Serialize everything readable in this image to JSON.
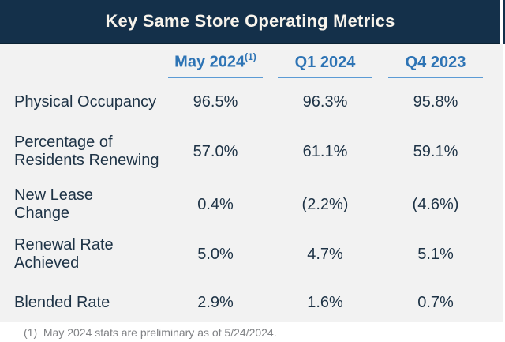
{
  "title": "Key Same Store Operating Metrics",
  "columns": [
    {
      "label": "May 2024",
      "superscript": "(1)"
    },
    {
      "label": "Q1 2024"
    },
    {
      "label": "Q4 2023"
    }
  ],
  "rows": [
    {
      "label": "Physical Occupancy",
      "values": [
        "96.5%",
        "96.3%",
        "95.8%"
      ]
    },
    {
      "label": "Percentage of\nResidents Renewing",
      "values": [
        "57.0%",
        "61.1%",
        "59.1%"
      ]
    },
    {
      "label": "New Lease\nChange",
      "values": [
        "0.4%",
        "(2.2%)",
        "(4.6%)"
      ]
    },
    {
      "label": "Renewal Rate\nAchieved",
      "values": [
        "5.0%",
        "4.7%",
        "5.1%"
      ]
    },
    {
      "label": "Blended Rate",
      "values": [
        "2.9%",
        "1.6%",
        "0.7%"
      ]
    }
  ],
  "footnote": "(1)  May 2024 stats are preliminary as of 5/24/2024.",
  "colors": {
    "title_bar_bg": "#14304a",
    "title_text": "#f8f4ec",
    "column_header_blue": "#2e74b5",
    "underline_blue": "#5b9bd5",
    "panel_bg": "#f2f2f2",
    "body_text": "#1e3346",
    "footnote_gray": "#808285"
  },
  "chart_data": {
    "type": "table",
    "title": "Key Same Store Operating Metrics",
    "columns": [
      "May 2024 (1)",
      "Q1 2024",
      "Q4 2023"
    ],
    "series": [
      {
        "name": "Physical Occupancy",
        "values": [
          "96.5%",
          "96.3%",
          "95.8%"
        ]
      },
      {
        "name": "Percentage of Residents Renewing",
        "values": [
          "57.0%",
          "61.1%",
          "59.1%"
        ]
      },
      {
        "name": "New Lease Change",
        "values": [
          "0.4%",
          "(2.2%)",
          "(4.6%)"
        ]
      },
      {
        "name": "Renewal Rate Achieved",
        "values": [
          "5.0%",
          "4.7%",
          "5.1%"
        ]
      },
      {
        "name": "Blended Rate",
        "values": [
          "2.9%",
          "1.6%",
          "0.7%"
        ]
      }
    ],
    "footnote": "(1) May 2024 stats are preliminary as of 5/24/2024."
  }
}
